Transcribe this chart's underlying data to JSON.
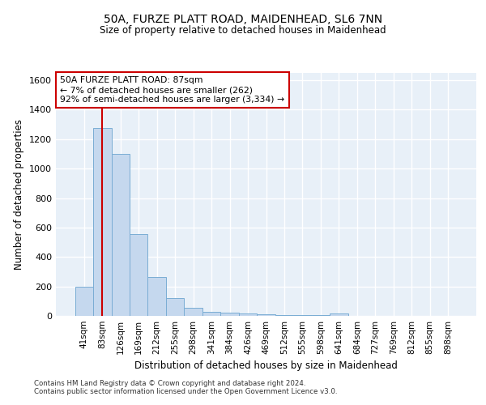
{
  "title": "50A, FURZE PLATT ROAD, MAIDENHEAD, SL6 7NN",
  "subtitle": "Size of property relative to detached houses in Maidenhead",
  "xlabel": "Distribution of detached houses by size in Maidenhead",
  "ylabel": "Number of detached properties",
  "categories": [
    "41sqm",
    "83sqm",
    "126sqm",
    "169sqm",
    "212sqm",
    "255sqm",
    "298sqm",
    "341sqm",
    "384sqm",
    "426sqm",
    "469sqm",
    "512sqm",
    "555sqm",
    "598sqm",
    "641sqm",
    "684sqm",
    "727sqm",
    "769sqm",
    "812sqm",
    "855sqm",
    "898sqm"
  ],
  "values": [
    200,
    1275,
    1100,
    555,
    265,
    120,
    55,
    30,
    20,
    15,
    12,
    8,
    5,
    3,
    18,
    2,
    0,
    0,
    0,
    0,
    0
  ],
  "bar_color": "#c5d8ee",
  "bar_edge_color": "#7aadd4",
  "background_color": "#e8f0f8",
  "grid_color": "#ffffff",
  "vline_x": 1.0,
  "vline_color": "#cc0000",
  "annotation_text": "50A FURZE PLATT ROAD: 87sqm\n← 7% of detached houses are smaller (262)\n92% of semi-detached houses are larger (3,334) →",
  "annotation_box_color": "#ffffff",
  "annotation_box_edge": "#cc0000",
  "ylim": [
    0,
    1650
  ],
  "yticks": [
    0,
    200,
    400,
    600,
    800,
    1000,
    1200,
    1400,
    1600
  ],
  "footer1": "Contains HM Land Registry data © Crown copyright and database right 2024.",
  "footer2": "Contains public sector information licensed under the Open Government Licence v3.0."
}
